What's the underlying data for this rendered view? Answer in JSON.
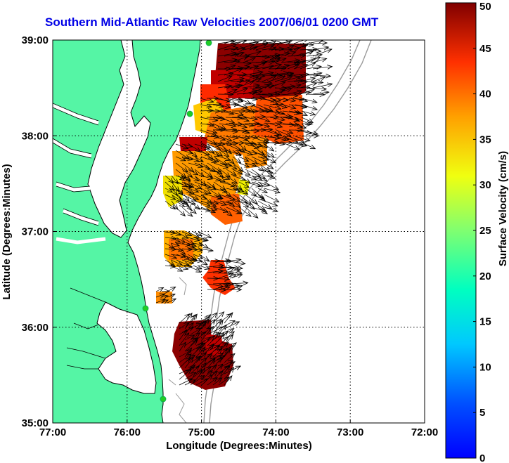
{
  "title": "Southern Mid-Atlantic Raw Velocities 2007/06/01 0200 GMT",
  "map": {
    "xlabel": "Longitude (Degrees:Minutes)",
    "ylabel": "Latitude (Degrees:Minutes)",
    "lon_range": [
      -77,
      -72
    ],
    "lat_range": [
      35,
      39
    ],
    "x_ticks": [
      "77:00",
      "76:00",
      "75:00",
      "74:00",
      "73:00",
      "72:00"
    ],
    "y_ticks": [
      "35:00",
      "36:00",
      "37:00",
      "38:00",
      "39:00"
    ],
    "grid": "dotted",
    "land_color": "#55f5a5",
    "coast_color": "#000000",
    "isobath_color": "#9a9a9a",
    "station_color": "#22cc22"
  },
  "colorbar": {
    "label": "Surface Velocity (cm/s)",
    "ticks": [
      "0",
      "5",
      "10",
      "15",
      "20",
      "25",
      "30",
      "35",
      "40",
      "45",
      "50"
    ],
    "range": [
      0,
      50
    ],
    "colormap": "jet"
  }
}
